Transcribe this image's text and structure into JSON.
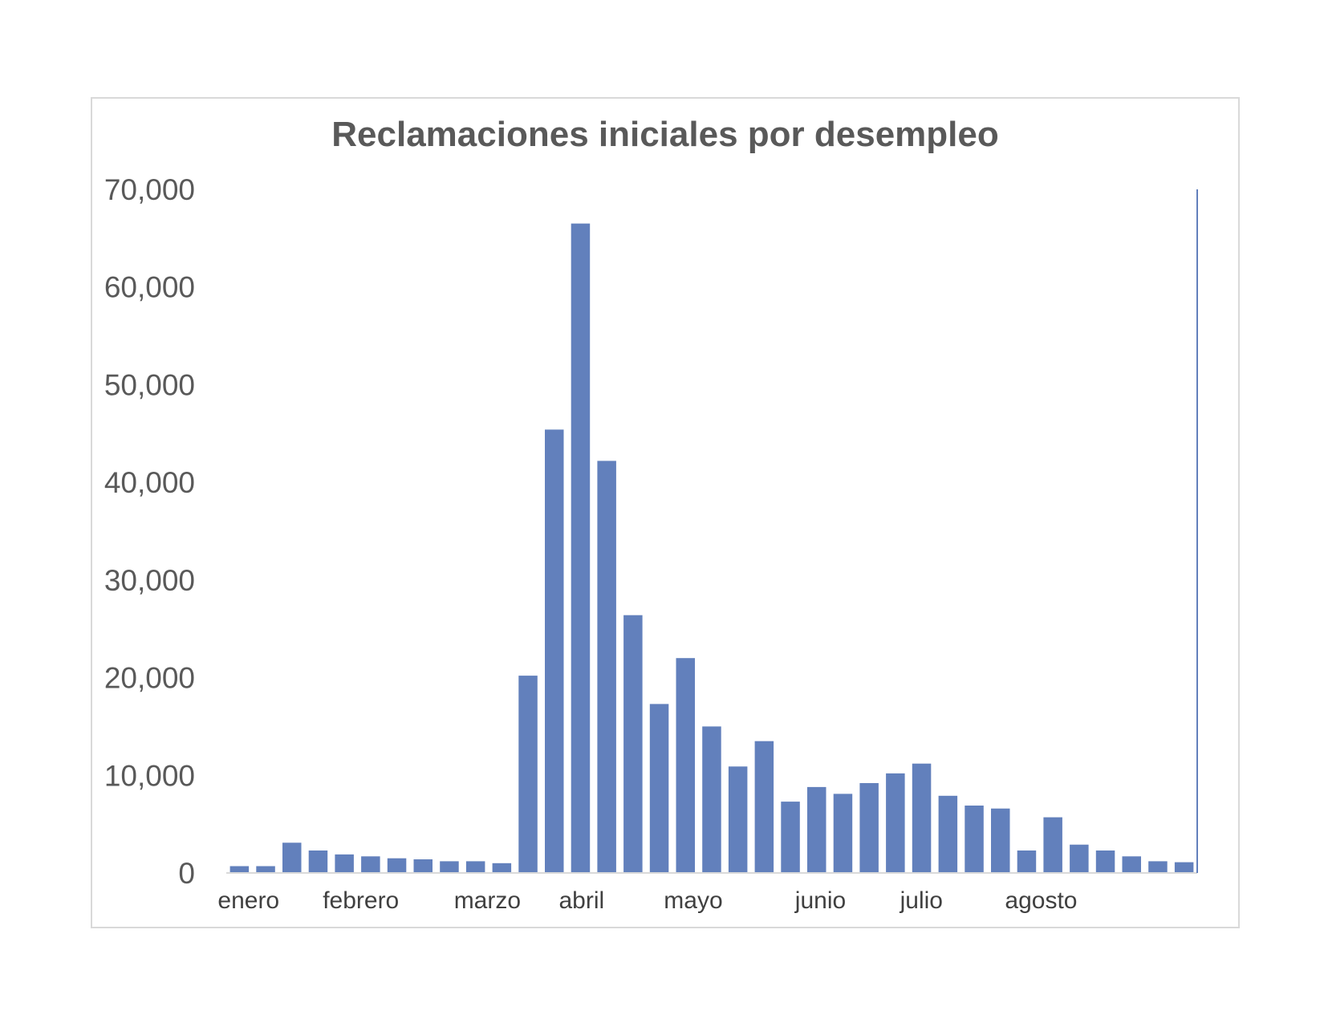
{
  "chart_data": {
    "type": "bar",
    "title": "Reclamaciones iniciales por desempleo",
    "xlabel": "",
    "ylabel": "",
    "ylim": [
      0,
      70000
    ],
    "yticks": [
      0,
      10000,
      20000,
      30000,
      40000,
      50000,
      60000,
      70000
    ],
    "ytick_labels": [
      "0",
      "10,000",
      "20,000",
      "30,000",
      "40,000",
      "50,000",
      "60,000",
      "70,000"
    ],
    "month_labels": [
      {
        "label": "enero",
        "index": 0
      },
      {
        "label": "febrero",
        "index": 4
      },
      {
        "label": "marzo",
        "index": 9
      },
      {
        "label": "abril",
        "index": 13
      },
      {
        "label": "mayo",
        "index": 17
      },
      {
        "label": "junio",
        "index": 22
      },
      {
        "label": "julio",
        "index": 26
      },
      {
        "label": "agosto",
        "index": 30
      }
    ],
    "values": [
      700,
      700,
      3100,
      2300,
      1900,
      1700,
      1500,
      1400,
      1200,
      1200,
      1000,
      20200,
      45400,
      66500,
      42200,
      26400,
      17300,
      22000,
      15000,
      10900,
      13500,
      7300,
      8800,
      8100,
      9200,
      10200,
      11200,
      7900,
      6900,
      6600,
      2300,
      5700,
      2900,
      2300,
      1700,
      1200,
      1100
    ],
    "bar_color": "#6280bc",
    "grid": false,
    "legend": "none"
  }
}
